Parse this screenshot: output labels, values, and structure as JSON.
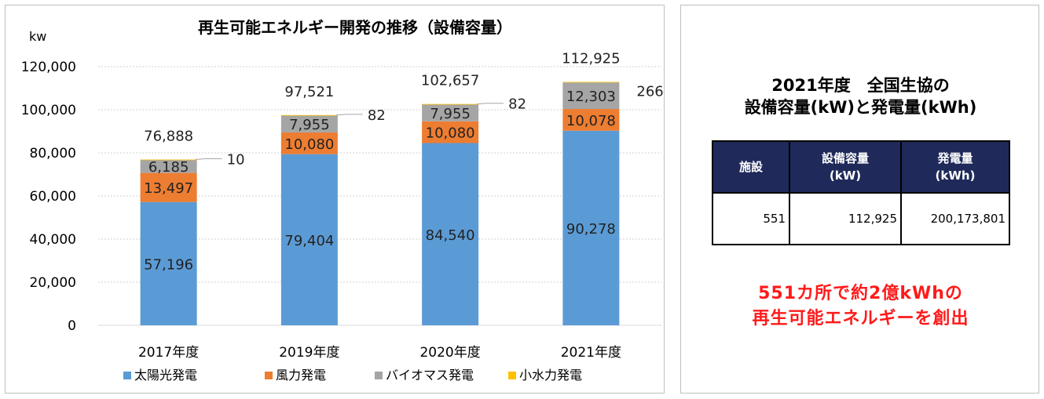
{
  "chart_data": {
    "type": "bar",
    "stacked": true,
    "title": "再生可能エネルギー開発の推移（設備容量）",
    "ylabel": "kw",
    "ylim": [
      0,
      120000
    ],
    "yticks": [
      "0",
      "20,000",
      "40,000",
      "60,000",
      "80,000",
      "100,000",
      "120,000"
    ],
    "categories": [
      "2017年度",
      "2019年度",
      "2020年度",
      "2021年度"
    ],
    "series": [
      {
        "name": "太陽光発電",
        "color": "#5b9bd5",
        "values": [
          57196,
          79404,
          84540,
          90278
        ],
        "labels": [
          "57,196",
          "79,404",
          "84,540",
          "90,278"
        ]
      },
      {
        "name": "風力発電",
        "color": "#ed7d31",
        "values": [
          13497,
          10080,
          10080,
          10078
        ],
        "labels": [
          "13,497",
          "10,080",
          "10,080",
          "10,078"
        ]
      },
      {
        "name": "バイオマス発電",
        "color": "#a5a5a5",
        "values": [
          6185,
          7955,
          7955,
          12303
        ],
        "labels": [
          "6,185",
          "7,955",
          "7,955",
          "12,303"
        ]
      },
      {
        "name": "小水力発電",
        "color": "#ffc000",
        "values": [
          10,
          82,
          82,
          266
        ],
        "labels": [
          "10",
          "82",
          "82",
          "266"
        ]
      }
    ],
    "totals": [
      "76,888",
      "97,521",
      "102,657",
      "112,925"
    ],
    "grid": true,
    "legend_position": "bottom"
  },
  "info": {
    "title_line1": "2021年度　全国生協の",
    "title_line2": "設備容量(kW)と発電量(kWh)",
    "table": {
      "headers": [
        {
          "line1": "施設",
          "line2": ""
        },
        {
          "line1": "設備容量",
          "line2": "(kW)"
        },
        {
          "line1": "発電量",
          "line2": "(kWh)"
        }
      ],
      "row": [
        "551",
        "112,925",
        "200,173,801"
      ]
    },
    "callout_line1": "551カ所で約2億kWhの",
    "callout_line2": "再生可能エネルギーを創出"
  }
}
